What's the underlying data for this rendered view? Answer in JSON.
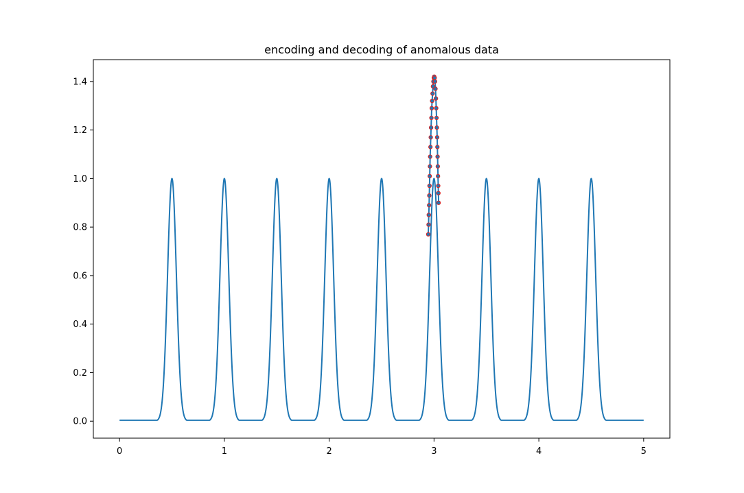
{
  "chart_data": {
    "type": "line",
    "title": "encoding and decoding of anomalous data",
    "xlabel": "",
    "ylabel": "",
    "xlim": [
      -0.25,
      5.25
    ],
    "ylim": [
      -0.07,
      1.49
    ],
    "x_ticks": [
      0,
      1,
      2,
      3,
      4,
      5
    ],
    "x_tick_labels": [
      "0",
      "1",
      "2",
      "3",
      "4",
      "5"
    ],
    "y_ticks": [
      0.0,
      0.2,
      0.4,
      0.6,
      0.8,
      1.0,
      1.2,
      1.4
    ],
    "y_tick_labels": [
      "0.0",
      "0.2",
      "0.4",
      "0.6",
      "0.8",
      "1.0",
      "1.2",
      "1.4"
    ],
    "grid": false,
    "series": [
      {
        "style": "line",
        "color": "#1f77b4",
        "baseline": 0.004,
        "peaks": [
          {
            "x": 0.5,
            "y": 1.0
          },
          {
            "x": 1.0,
            "y": 1.0
          },
          {
            "x": 1.5,
            "y": 1.0
          },
          {
            "x": 2.0,
            "y": 1.0
          },
          {
            "x": 2.5,
            "y": 1.0
          },
          {
            "x": 3.0,
            "y": 1.0
          },
          {
            "x": 3.5,
            "y": 1.0
          },
          {
            "x": 4.0,
            "y": 1.0
          },
          {
            "x": 4.5,
            "y": 1.0
          }
        ],
        "x_start": 0,
        "x_end": 5
      },
      {
        "style": "markers-line",
        "color": "#1f77b4",
        "marker_edge_color": "#d62728",
        "points": [
          {
            "x": 2.945,
            "y": 0.77
          },
          {
            "x": 2.948,
            "y": 0.81
          },
          {
            "x": 2.95,
            "y": 0.85
          },
          {
            "x": 2.953,
            "y": 0.89
          },
          {
            "x": 2.955,
            "y": 0.93
          },
          {
            "x": 2.957,
            "y": 0.97
          },
          {
            "x": 2.959,
            "y": 1.01
          },
          {
            "x": 2.961,
            "y": 1.05
          },
          {
            "x": 2.963,
            "y": 1.09
          },
          {
            "x": 2.966,
            "y": 1.13
          },
          {
            "x": 2.969,
            "y": 1.17
          },
          {
            "x": 2.972,
            "y": 1.21
          },
          {
            "x": 2.975,
            "y": 1.25
          },
          {
            "x": 2.978,
            "y": 1.29
          },
          {
            "x": 2.982,
            "y": 1.32
          },
          {
            "x": 2.986,
            "y": 1.35
          },
          {
            "x": 2.99,
            "y": 1.38
          },
          {
            "x": 2.994,
            "y": 1.4
          },
          {
            "x": 2.998,
            "y": 1.415
          },
          {
            "x": 3.002,
            "y": 1.42
          },
          {
            "x": 3.006,
            "y": 1.415
          },
          {
            "x": 3.01,
            "y": 1.4
          },
          {
            "x": 3.014,
            "y": 1.37
          },
          {
            "x": 3.018,
            "y": 1.33
          },
          {
            "x": 3.021,
            "y": 1.29
          },
          {
            "x": 3.024,
            "y": 1.25
          },
          {
            "x": 3.027,
            "y": 1.21
          },
          {
            "x": 3.03,
            "y": 1.17
          },
          {
            "x": 3.032,
            "y": 1.13
          },
          {
            "x": 3.034,
            "y": 1.09
          },
          {
            "x": 3.036,
            "y": 1.05
          },
          {
            "x": 3.038,
            "y": 1.01
          },
          {
            "x": 3.04,
            "y": 0.97
          },
          {
            "x": 3.042,
            "y": 0.94
          },
          {
            "x": 3.044,
            "y": 0.9
          }
        ]
      }
    ]
  }
}
